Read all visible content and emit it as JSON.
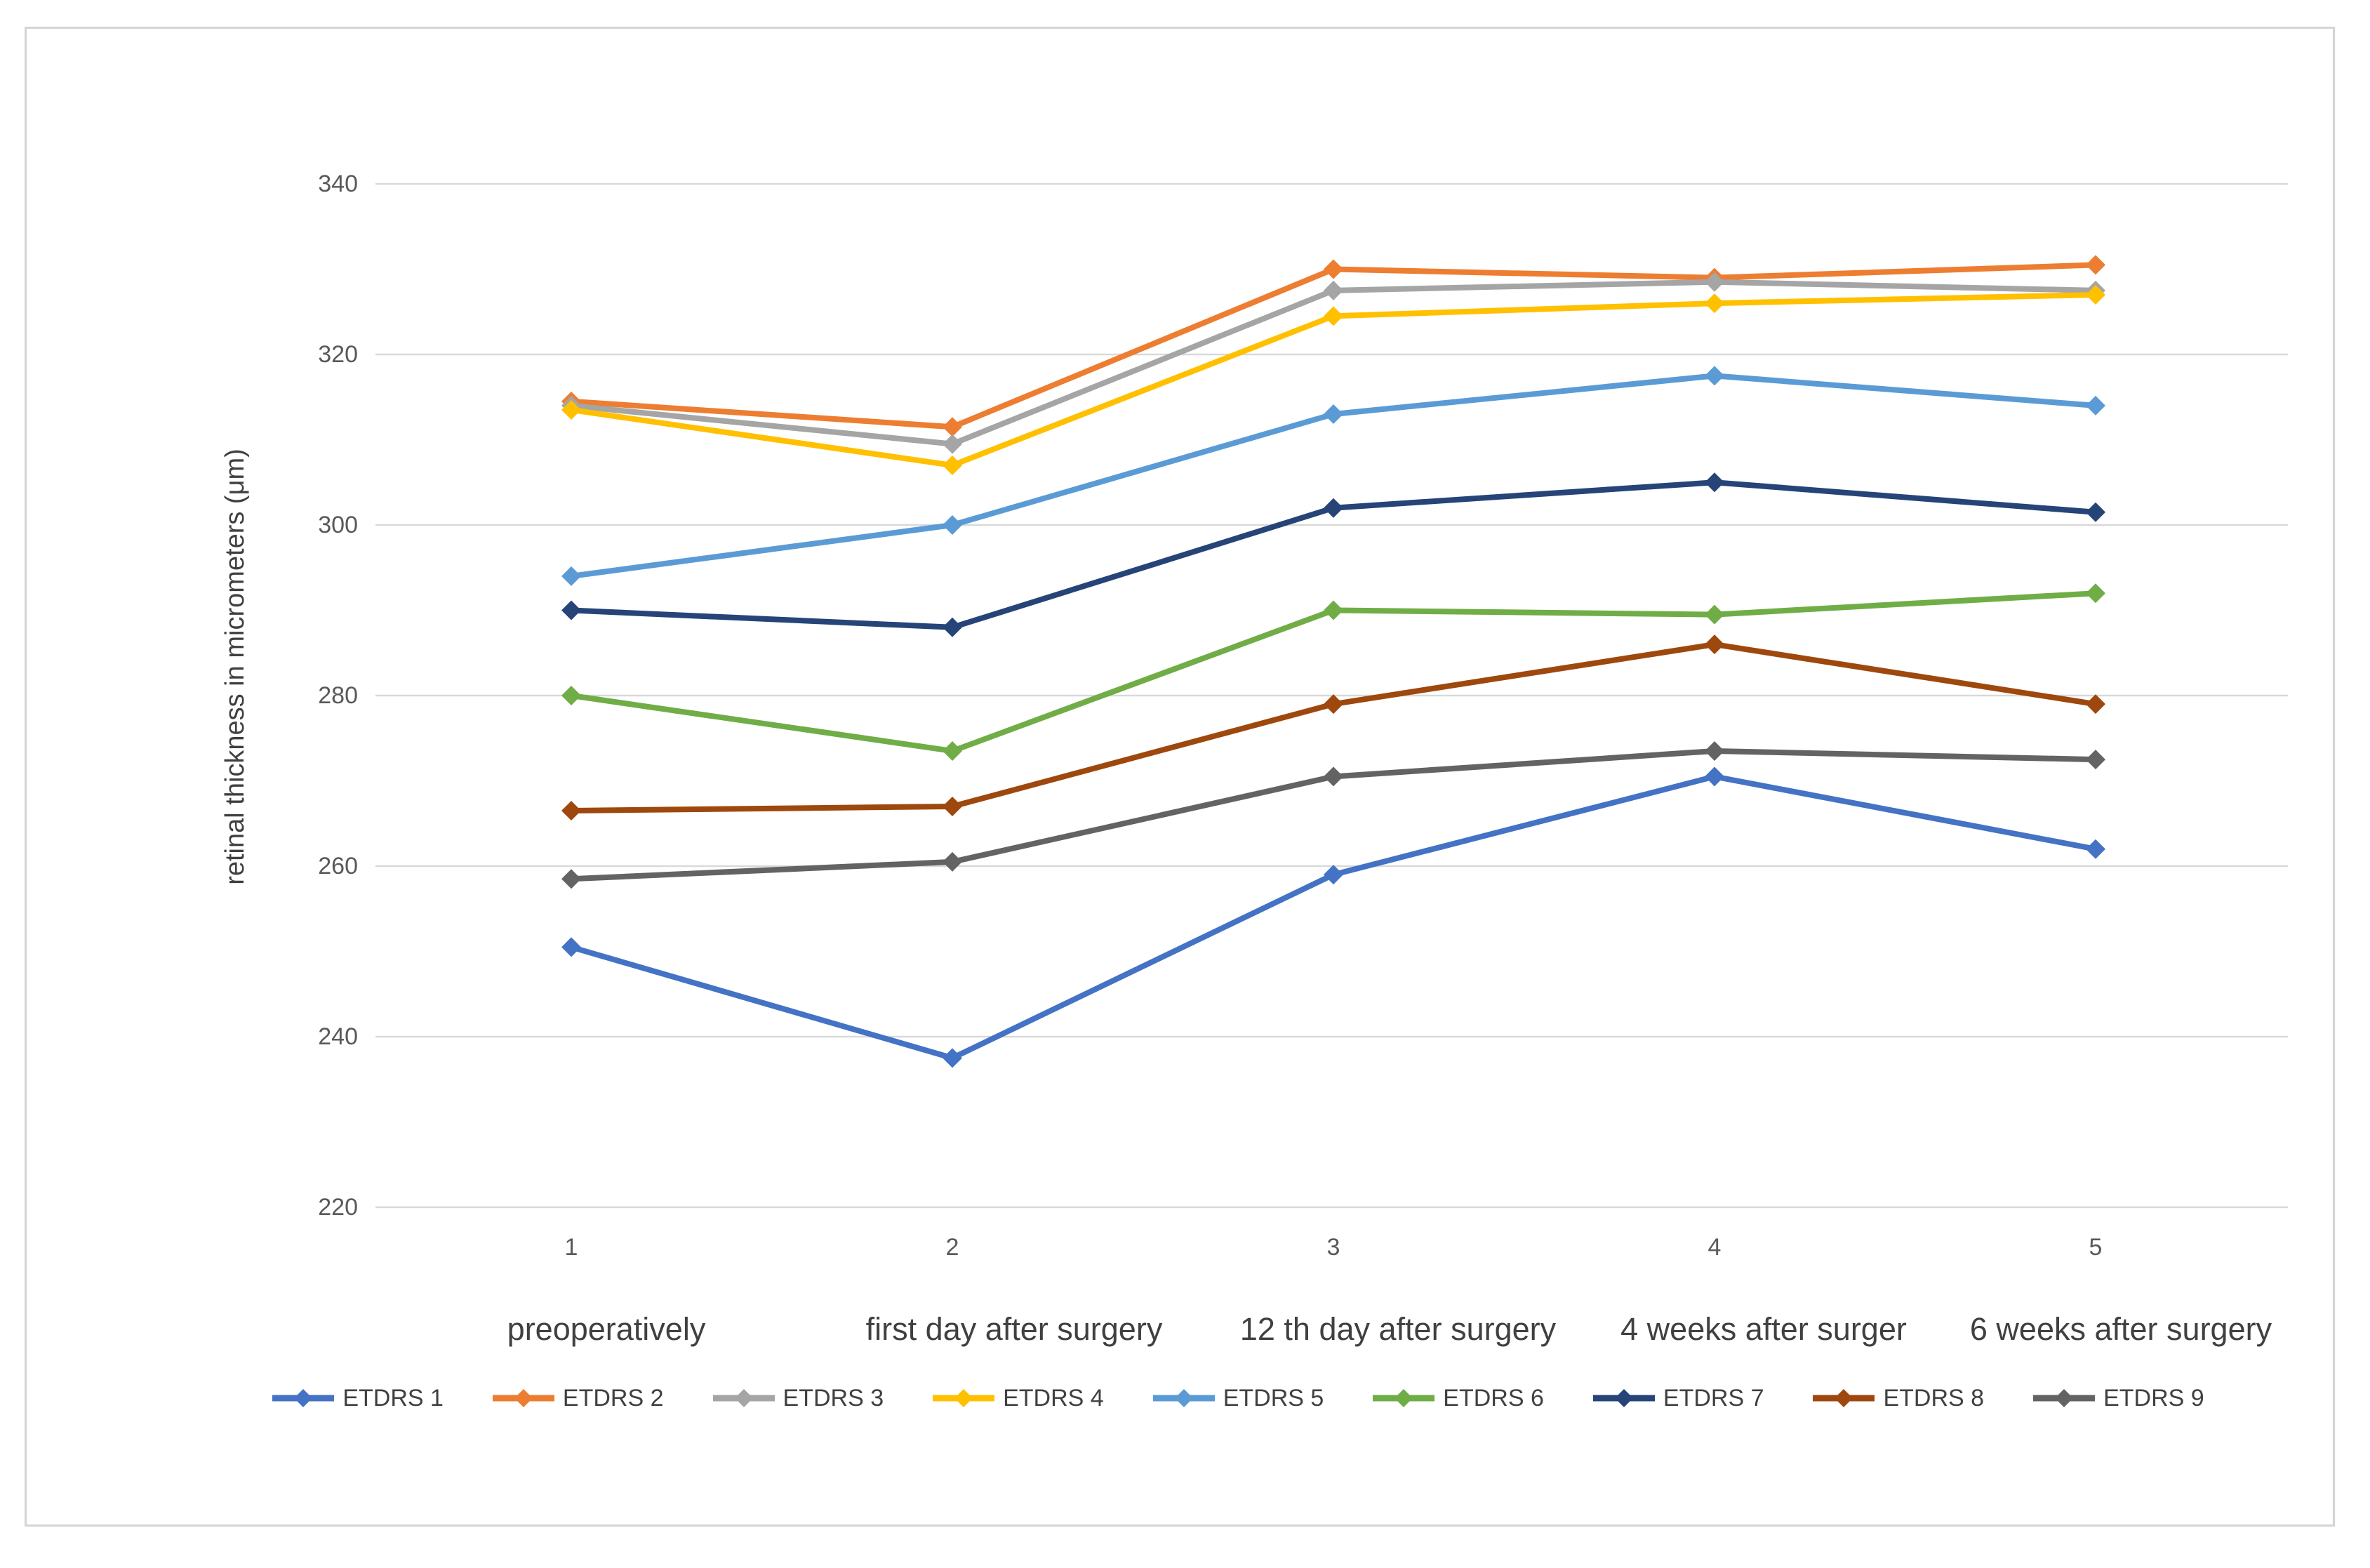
{
  "chart_data": {
    "type": "line",
    "title": "",
    "ylabel": "retinal thickness in micrometers (μm)",
    "xlabel": "",
    "x_tick_labels": [
      "1",
      "2",
      "3",
      "4",
      "5"
    ],
    "categories": [
      "preoperatively",
      "first day after surgery",
      "12 th day after surgery",
      "4 weeks after surger",
      "6 weeks after surgery"
    ],
    "y_ticks": [
      220,
      240,
      260,
      280,
      300,
      320,
      340
    ],
    "ylim": [
      220,
      340
    ],
    "grid": "horizontal-only",
    "legend_position": "bottom",
    "marker": "diamond",
    "series": [
      {
        "name": "ETDRS 1",
        "color": "#4472C4",
        "values": [
          250.5,
          237.5,
          259,
          270.5,
          262
        ]
      },
      {
        "name": "ETDRS 2",
        "color": "#ED7D31",
        "values": [
          314.5,
          311.5,
          330,
          329,
          330.5
        ]
      },
      {
        "name": "ETDRS 3",
        "color": "#A5A5A5",
        "values": [
          314,
          309.5,
          327.5,
          328.5,
          327.5
        ]
      },
      {
        "name": "ETDRS 4",
        "color": "#FFC000",
        "values": [
          313.5,
          307,
          324.5,
          326,
          327
        ]
      },
      {
        "name": "ETDRS 5",
        "color": "#5B9BD5",
        "values": [
          294,
          300,
          313,
          317.5,
          314
        ]
      },
      {
        "name": "ETDRS 6",
        "color": "#70AD47",
        "values": [
          280,
          273.5,
          290,
          289.5,
          292
        ]
      },
      {
        "name": "ETDRS 7",
        "color": "#264478",
        "values": [
          290,
          288,
          302,
          305,
          301.5
        ]
      },
      {
        "name": "ETDRS 8",
        "color": "#9E480E",
        "values": [
          266.5,
          267,
          279,
          286,
          279
        ]
      },
      {
        "name": "ETDRS 9",
        "color": "#636363",
        "values": [
          258.5,
          260.5,
          270.5,
          273.5,
          272.5
        ]
      }
    ],
    "styles": {
      "grid_color": "#D9D9D9",
      "tick_text_color": "#595959",
      "label_text_color": "#404040",
      "frame_border_color": "#D4D4D4",
      "background": "#FFFFFF"
    }
  }
}
